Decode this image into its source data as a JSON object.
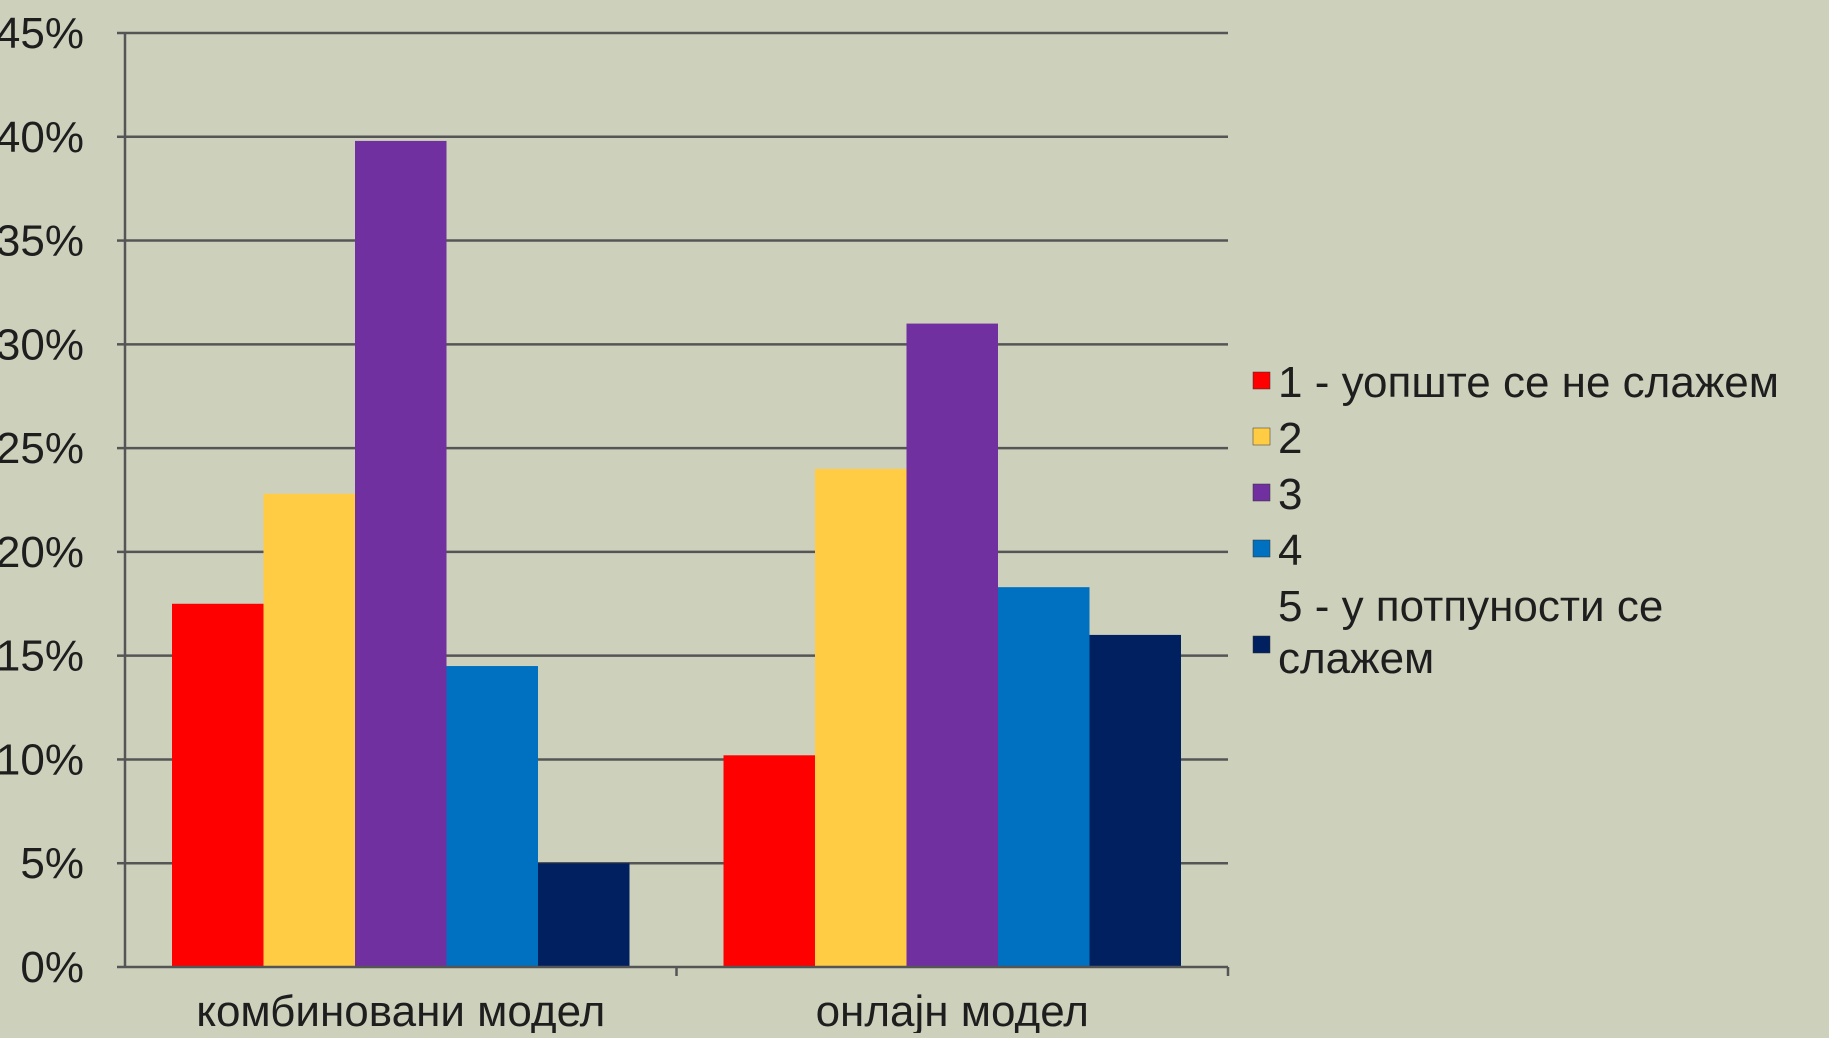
{
  "chart_data": {
    "type": "bar",
    "title": "",
    "xlabel": "",
    "ylabel": "",
    "categories": [
      "комбиновани модел",
      "онлајн модел"
    ],
    "series": [
      {
        "name": "1 - уопште се не слажем",
        "color": "#ff0000",
        "values": [
          17.5,
          10.2
        ]
      },
      {
        "name": "2",
        "color": "#ffcc44",
        "values": [
          22.8,
          24.0
        ]
      },
      {
        "name": "3",
        "color": "#7030a0",
        "values": [
          39.8,
          31.0
        ]
      },
      {
        "name": "4",
        "color": "#0070c0",
        "values": [
          14.5,
          18.3
        ]
      },
      {
        "name": "5 - у потпуности се слажем",
        "color": "#002060",
        "values": [
          5.0,
          16.0
        ]
      }
    ],
    "ylim": [
      0,
      45
    ],
    "yticks": [
      "0%",
      "5%",
      "10%",
      "15%",
      "20%",
      "25%",
      "30%",
      "35%",
      "40%",
      "45%"
    ],
    "grid": true,
    "legend": "right",
    "background": "#cdd1bc",
    "gridline_color": "#555555"
  }
}
